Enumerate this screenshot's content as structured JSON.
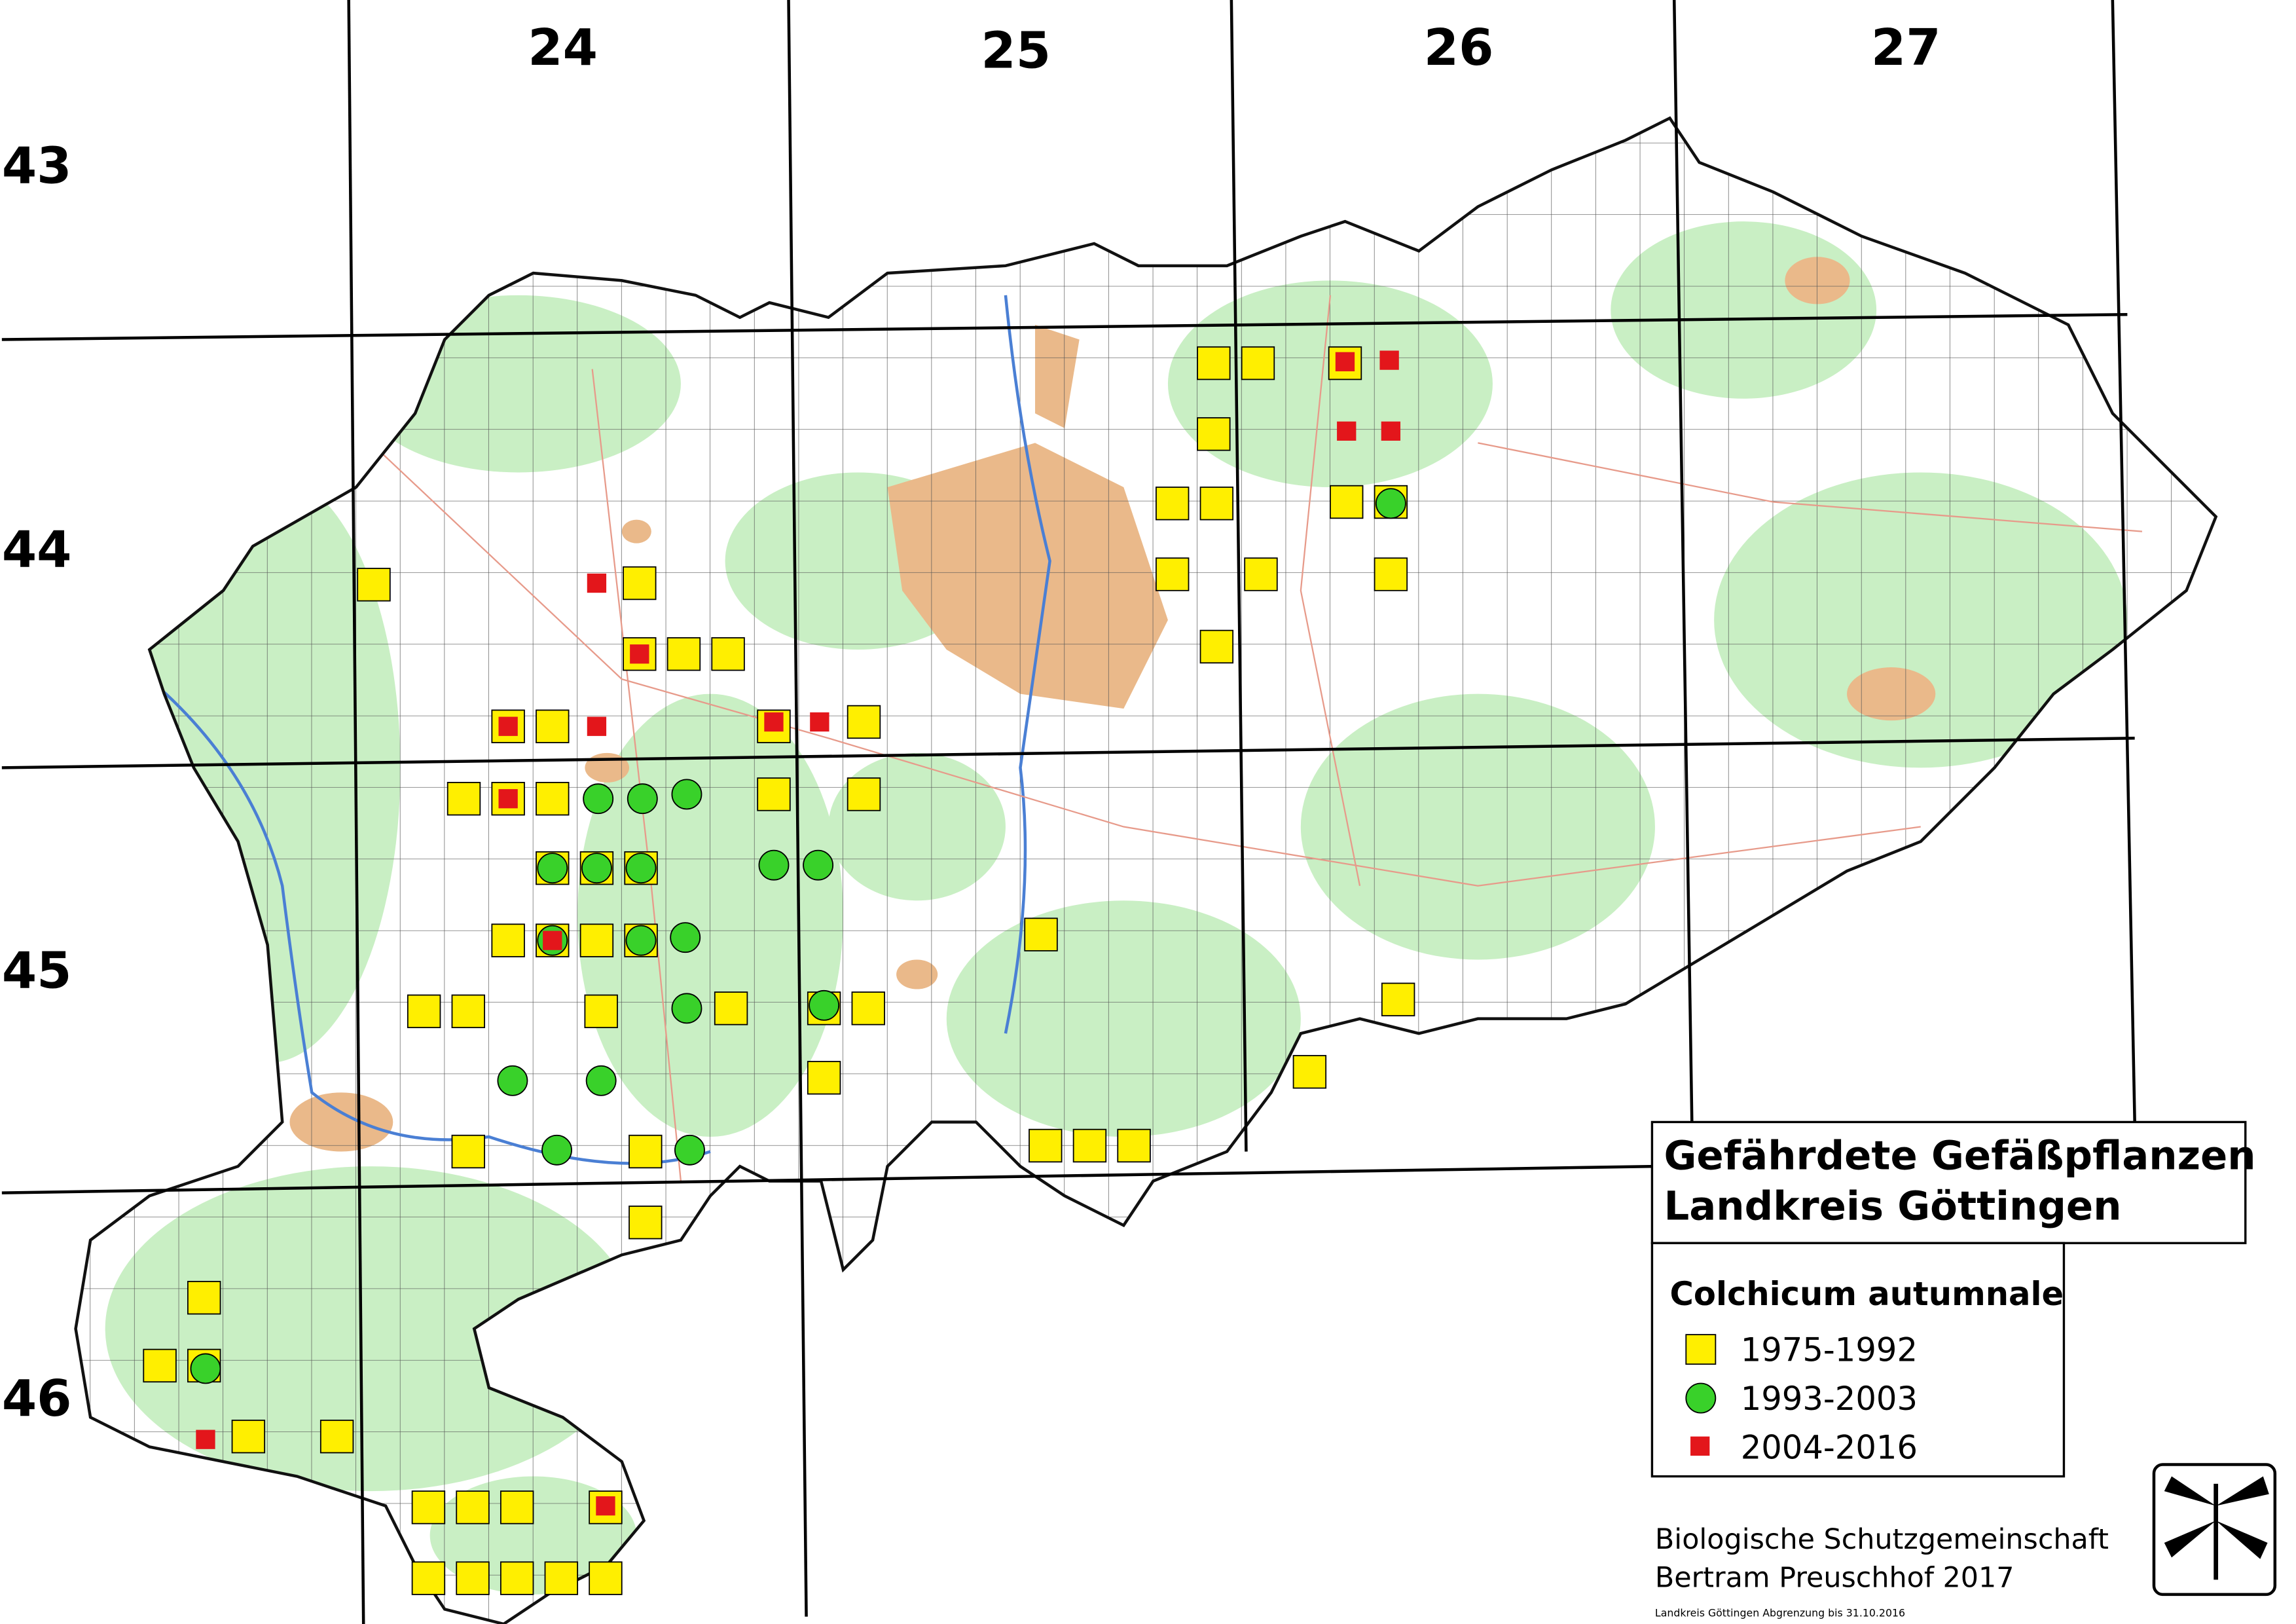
{
  "map": {
    "columns": [
      "24",
      "25",
      "26",
      "27"
    ],
    "rows": [
      "43",
      "44",
      "45",
      "46"
    ],
    "title": [
      "Gefährdete Gefäßpflanzen",
      "Landkreis Göttingen"
    ],
    "species": "Colchicum autumnale",
    "legend": [
      "1975-1992",
      "1993-2003",
      "2004-2016"
    ],
    "credits": [
      "Biologische Schutzgemeinschaft",
      "Bertram Preuschhof 2017"
    ],
    "note": "Landkreis Göttingen Abgrenzung bis 31.10.2016"
  }
}
